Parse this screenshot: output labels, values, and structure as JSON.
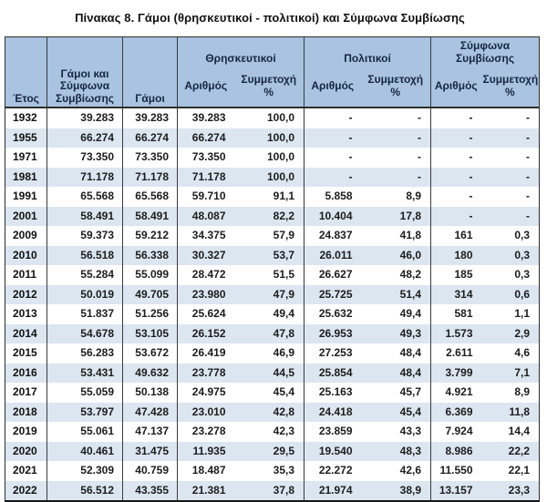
{
  "title": "Πίνακας 8. Γάμοι (θρησκευτικοί - πολιτικοί) και Σύμφωνα Συμβίωσης",
  "colors": {
    "header_bg": "#a9c3e1",
    "stripe_bg": "#dce6f1",
    "border_dark": "#2e2e2e",
    "header_text": "#18263f"
  },
  "table": {
    "headers": {
      "year": "Έτος",
      "unions_total": "Γάμοι και\nΣύμφωνα\nΣυμβίωσης",
      "marriages": "Γάμοι",
      "group_religious": "Θρησκευτικοί",
      "group_civil": "Πολιτικοί",
      "group_cohabitation": "Σύμφωνα Συμβίωσης",
      "sub_number": "Αριθμός",
      "sub_share": "Συμμετοχή\n%"
    },
    "rows": [
      {
        "year": "1932",
        "cells": [
          "39.283",
          "39.283",
          "39.283",
          "100,0",
          "-",
          "-",
          "-",
          "-"
        ]
      },
      {
        "year": "1955",
        "cells": [
          "66.274",
          "66.274",
          "66.274",
          "100,0",
          "-",
          "-",
          "-",
          "-"
        ]
      },
      {
        "year": "1971",
        "cells": [
          "73.350",
          "73.350",
          "73.350",
          "100,0",
          "-",
          "-",
          "-",
          "-"
        ]
      },
      {
        "year": "1981",
        "cells": [
          "71.178",
          "71.178",
          "71.178",
          "100,0",
          "-",
          "-",
          "-",
          "-"
        ]
      },
      {
        "year": "1991",
        "cells": [
          "65.568",
          "65.568",
          "59.710",
          "91,1",
          "5.858",
          "8,9",
          "-",
          "-"
        ]
      },
      {
        "year": "2001",
        "cells": [
          "58.491",
          "58.491",
          "48.087",
          "82,2",
          "10.404",
          "17,8",
          "-",
          "-"
        ]
      },
      {
        "year": "2009",
        "cells": [
          "59.373",
          "59.212",
          "34.375",
          "57,9",
          "24.837",
          "41,8",
          "161",
          "0,3"
        ]
      },
      {
        "year": "2010",
        "cells": [
          "56.518",
          "56.338",
          "30.327",
          "53,7",
          "26.011",
          "46,0",
          "180",
          "0,3"
        ]
      },
      {
        "year": "2011",
        "cells": [
          "55.284",
          "55.099",
          "28.472",
          "51,5",
          "26.627",
          "48,2",
          "185",
          "0,3"
        ]
      },
      {
        "year": "2012",
        "cells": [
          "50.019",
          "49.705",
          "23.980",
          "47,9",
          "25.725",
          "51,4",
          "314",
          "0,6"
        ]
      },
      {
        "year": "2013",
        "cells": [
          "51.837",
          "51.256",
          "25.624",
          "49,4",
          "25.632",
          "49,4",
          "581",
          "1,1"
        ]
      },
      {
        "year": "2014",
        "cells": [
          "54.678",
          "53.105",
          "26.152",
          "47,8",
          "26.953",
          "49,3",
          "1.573",
          "2,9"
        ]
      },
      {
        "year": "2015",
        "cells": [
          "56.283",
          "53.672",
          "26.419",
          "46,9",
          "27.253",
          "48,4",
          "2.611",
          "4,6"
        ]
      },
      {
        "year": "2016",
        "cells": [
          "53.431",
          "49.632",
          "23.778",
          "44,5",
          "25.854",
          "48,4",
          "3.799",
          "7,1"
        ]
      },
      {
        "year": "2017",
        "cells": [
          "55.059",
          "50.138",
          "24.975",
          "45,4",
          "25.163",
          "45,7",
          "4.921",
          "8,9"
        ]
      },
      {
        "year": "2018",
        "cells": [
          "53.797",
          "47.428",
          "23.010",
          "42,8",
          "24.418",
          "45,4",
          "6.369",
          "11,8"
        ]
      },
      {
        "year": "2019",
        "cells": [
          "55.061",
          "47.137",
          "23.278",
          "42,3",
          "23.859",
          "43,3",
          "7.924",
          "14,4"
        ]
      },
      {
        "year": "2020",
        "cells": [
          "40.461",
          "31.475",
          "11.935",
          "29,5",
          "19.540",
          "48,3",
          "8.986",
          "22,2"
        ]
      },
      {
        "year": "2021",
        "cells": [
          "52.309",
          "40.759",
          "18.487",
          "35,3",
          "22.272",
          "42,6",
          "11.550",
          "22,1"
        ]
      },
      {
        "year": "2022",
        "cells": [
          "56.512",
          "43.355",
          "21.381",
          "37,8",
          "21.974",
          "38,9",
          "13.157",
          "23,3"
        ]
      }
    ]
  }
}
